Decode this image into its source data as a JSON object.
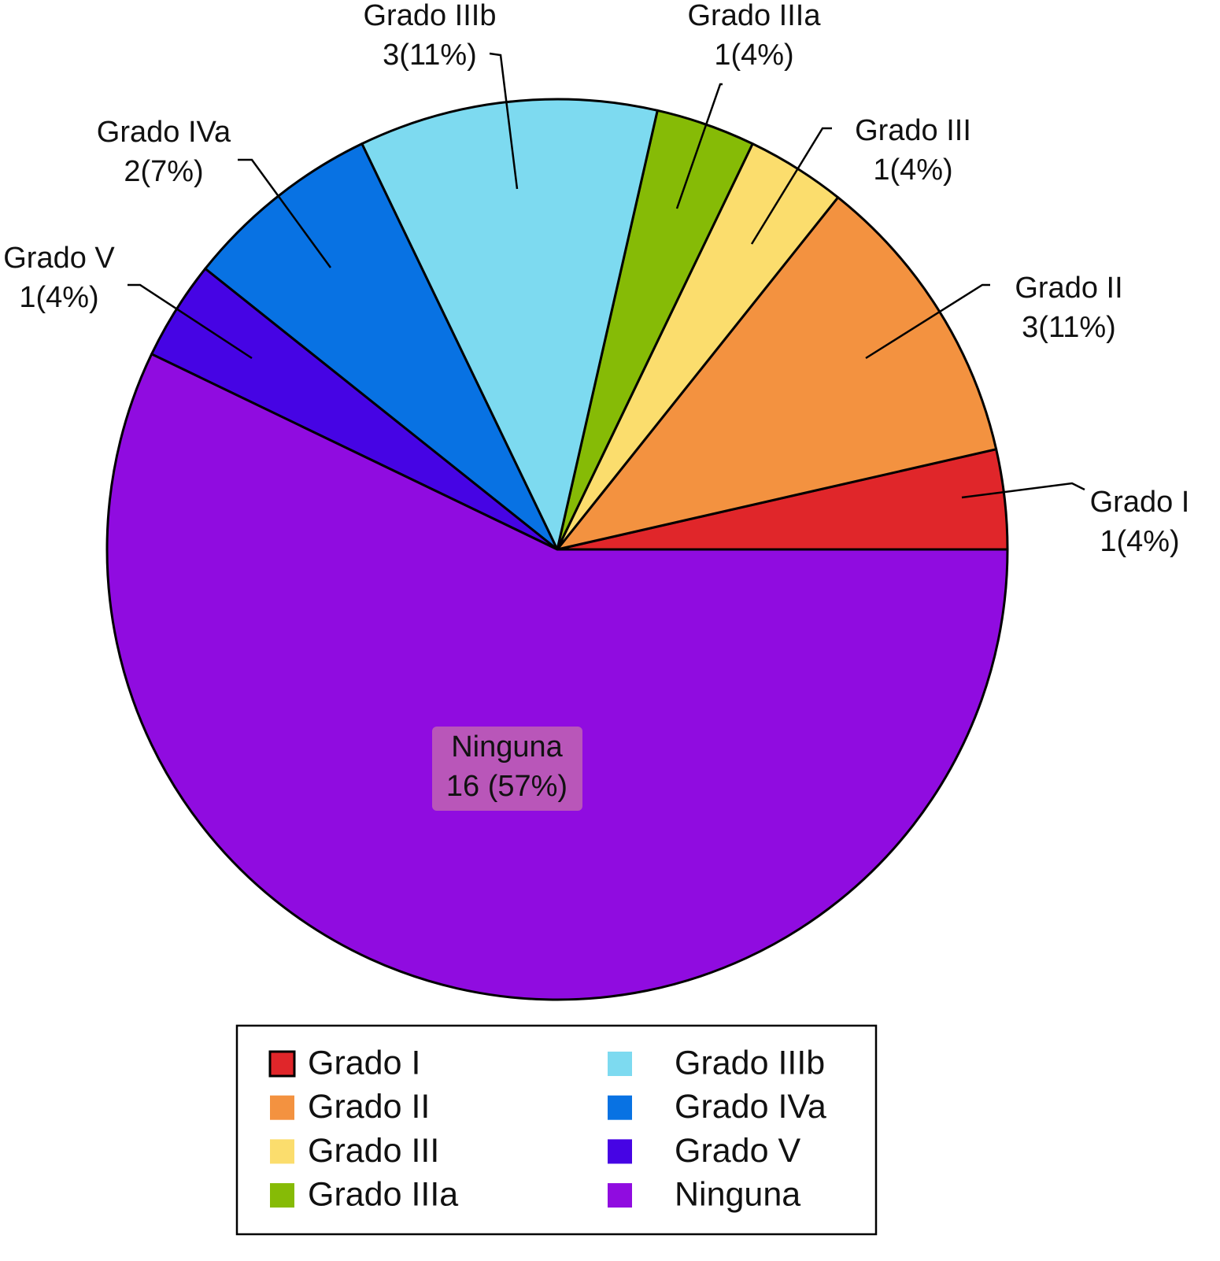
{
  "chart_data": {
    "type": "pie",
    "categories": [
      "Grado I",
      "Grado II",
      "Grado III",
      "Grado IIIa",
      "Grado IIIb",
      "Grado IVa",
      "Grado V",
      "Ninguna"
    ],
    "values": [
      1,
      3,
      1,
      1,
      3,
      2,
      1,
      16
    ],
    "value_labels": [
      "1(4%)",
      "3(11%)",
      "1(4%)",
      "1(4%)",
      "3(11%)",
      "2(7%)",
      "1(4%)",
      "16 (57%)"
    ],
    "colors": [
      "#e0262a",
      "#f39240",
      "#fbdd6d",
      "#86bb06",
      "#7ddaf0",
      "#0872e3",
      "#4604e4",
      "#900ce0"
    ],
    "legend": "bottom"
  }
}
